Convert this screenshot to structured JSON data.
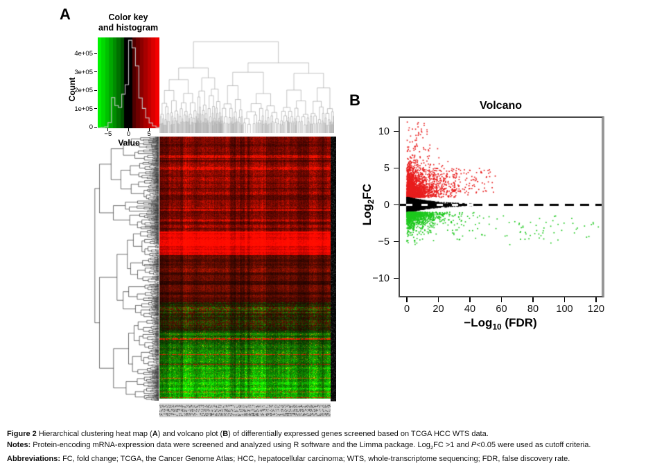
{
  "panels": {
    "a_label": "A",
    "b_label": "B"
  },
  "color_key": {
    "title_line1": "Color key",
    "title_line2": "and histogram",
    "ylabel": "Count",
    "xlabel": "Value",
    "y_ticks": {
      "values": [
        0,
        100000,
        200000,
        300000,
        400000
      ],
      "labels": [
        "0",
        "1e+05",
        "2e+05",
        "3e+05",
        "4e+05"
      ]
    },
    "x_ticks": {
      "values": [
        -5,
        0,
        5
      ],
      "labels": [
        "−5",
        "0",
        "5"
      ]
    },
    "xlim": [
      -7.5,
      7.5
    ],
    "ylim": [
      0,
      480000
    ],
    "colors": {
      "low": "#00dd00",
      "mid": "#000000",
      "high": "#dd0000",
      "hist_line": "#c8c8c8"
    }
  },
  "volcano": {
    "title": "Volcano",
    "ylabel_parts": [
      "Log",
      "2",
      "FC"
    ],
    "xlabel_parts": [
      "−Log",
      "10",
      " (FDR)"
    ],
    "x_ticks": {
      "values": [
        0,
        20,
        40,
        60,
        80,
        100,
        120
      ],
      "labels": [
        "0",
        "20",
        "40",
        "60",
        "80",
        "100",
        "120"
      ]
    },
    "y_ticks": {
      "values": [
        10,
        5,
        0,
        -5,
        -10
      ],
      "labels": [
        "10",
        "5",
        "0",
        "−5",
        "−10"
      ]
    }
  },
  "chart_data": [
    {
      "id": "color-key-histogram",
      "type": "bar",
      "title": "Color key and histogram",
      "xlabel": "Value",
      "ylabel": "Count",
      "xlim": [
        -7.5,
        7.5
      ],
      "ylim": [
        0,
        480000
      ],
      "x_ticks": [
        -5,
        0,
        5
      ],
      "y_ticks": [
        0,
        100000,
        200000,
        300000,
        400000
      ],
      "counts": [
        2000,
        4000,
        7000,
        30000,
        162000,
        120000,
        110000,
        180000,
        230000,
        465000,
        425000,
        330000,
        160000,
        105000,
        55000,
        28000,
        12000,
        5000
      ],
      "gradient": "green-black-red"
    },
    {
      "id": "expression-heatmap",
      "type": "heatmap",
      "description": "Hierarchical clustering heat map of differentially expressed genes; rows = genes (upregulated red block on top, downregulated green block on bottom), columns = TCGA HCC samples",
      "colors": {
        "down": "#00cc00",
        "zero": "#000000",
        "up": "#cc0000"
      },
      "row_bands": [
        {
          "from": 0.0,
          "to": 0.36,
          "pattern": "dark-red",
          "intensity": 0.5
        },
        {
          "from": 0.36,
          "to": 0.45,
          "pattern": "bright-red",
          "intensity": 0.45
        },
        {
          "from": 0.45,
          "to": 0.55,
          "pattern": "maroon",
          "intensity": 0.4
        },
        {
          "from": 0.55,
          "to": 0.63,
          "pattern": "maroon",
          "intensity": 0.33
        },
        {
          "from": 0.63,
          "to": 0.74,
          "pattern": "mixed-dark",
          "intensity": 0.32
        },
        {
          "from": 0.74,
          "to": 1.01,
          "pattern": "green",
          "intensity": 0.55
        }
      ],
      "row_dendrogram": {
        "side": "left",
        "color": "#0d0d0d",
        "depth": 10
      },
      "col_dendrogram": {
        "side": "top",
        "color": "#9a9a9a",
        "depth": 8
      },
      "row_label_strip_color": "#0a0a0a",
      "col_label_strip_color": "#cfcfcf"
    },
    {
      "id": "volcano-plot",
      "type": "scatter",
      "title": "Volcano",
      "xlabel": "−Log10 (FDR)",
      "ylabel": "Log2FC",
      "xlim": [
        -4.5,
        124
      ],
      "ylim": [
        -12.4,
        11.8
      ],
      "x_ticks": [
        0,
        20,
        40,
        60,
        80,
        100,
        120
      ],
      "y_ticks": [
        10,
        5,
        0,
        -5,
        -10
      ],
      "zero_line": {
        "y": 0,
        "style": "dashed",
        "dash": [
          13,
          9
        ],
        "width": 3.2,
        "color": "#000000",
        "underlay": "#ffffff"
      },
      "series": [
        {
          "name": "upregulated",
          "color": "#e81e1e",
          "count": 2000,
          "kind": "wedge",
          "x_exp_mean": 6,
          "x_max": 60,
          "y_base": 1,
          "y_sign": 1,
          "y_exp_mean": 1.55,
          "y_cap_at0": 10.4,
          "y_cap_decay": 55
        },
        {
          "name": "upregulated-spread",
          "color": "#e81e1e",
          "count": 260,
          "kind": "cluster",
          "x_min": 14,
          "x_span": 44,
          "x_exp": true,
          "y_min": 1.6,
          "y_span": 3.4
        },
        {
          "name": "upregulated-peak",
          "color": "#e81e1e",
          "count": 14,
          "kind": "cluster",
          "x_min": 4,
          "x_span": 9,
          "y_min": 9.4,
          "y_span": 2.1
        },
        {
          "name": "not-significant",
          "color": "#000000",
          "count": 3100,
          "kind": "band",
          "x_exp_mean": 8,
          "x_max": 46,
          "w0": 1.05,
          "w_decay": 20,
          "w_min": 0.08
        },
        {
          "name": "downregulated",
          "color": "#1ec81e",
          "count": 1150,
          "kind": "wedge",
          "x_exp_mean": 7.5,
          "x_max": 45,
          "y_base": -1,
          "y_sign": -1,
          "y_exp_mean": 0.78,
          "y_cap_at0": 4.6,
          "y_cap_decay": 120
        },
        {
          "name": "downregulated-tail",
          "color": "#1ec81e",
          "count": 85,
          "kind": "cluster",
          "x_min": 26,
          "x_span": 96,
          "y_min": -1.5,
          "y_span": -3.3,
          "deep_prob": 0.15
        }
      ]
    }
  ],
  "caption": {
    "lines": [
      [
        {
          "t": "Figure 2",
          "b": true
        },
        {
          "t": " Hierarchical clustering heat map ("
        },
        {
          "t": "A",
          "b": true
        },
        {
          "t": ") and volcano plot ("
        },
        {
          "t": "B",
          "b": true
        },
        {
          "t": ") of differentially expressed genes screened based on TCGA HCC WTS data."
        }
      ],
      [
        {
          "t": "Notes:",
          "b": true
        },
        {
          "t": " Protein-encoding mRNA-expression data were screened and analyzed using R software and the Limma package. Log"
        },
        {
          "t": "2",
          "sub": true
        },
        {
          "t": "FC >1 and "
        },
        {
          "t": "P",
          "i": true
        },
        {
          "t": "<0.05 were used as cutoff criteria."
        }
      ],
      [
        {
          "t": "Abbreviations:",
          "b": true
        },
        {
          "t": " FC, fold change; TCGA, the Cancer Genome Atlas; HCC, hepatocellular carcinoma; WTS, whole-transcriptome sequencing; FDR, false discovery rate."
        }
      ]
    ]
  }
}
